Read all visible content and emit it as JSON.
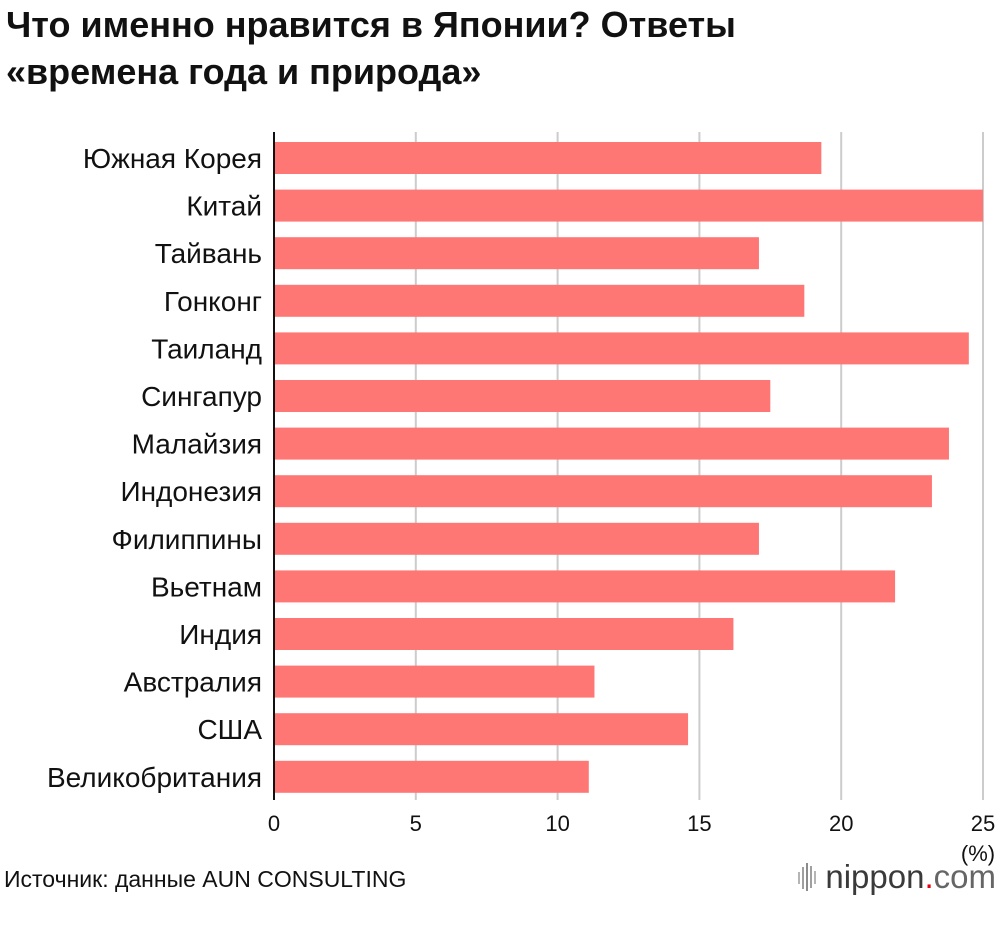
{
  "chart_data": {
    "type": "bar",
    "orientation": "horizontal",
    "title_lines": [
      "Что именно нравится в Японии? Ответы",
      "«времена года и природа»"
    ],
    "categories": [
      "Южная Корея",
      "Китай",
      "Тайвань",
      "Гонконг",
      "Таиланд",
      "Сингапур",
      "Малайзия",
      "Индонезия",
      "Филиппины",
      "Вьетнам",
      "Индия",
      "Австралия",
      "США",
      "Великобритания"
    ],
    "values": [
      19.3,
      25.0,
      17.1,
      18.7,
      24.5,
      17.5,
      23.8,
      23.2,
      17.1,
      21.9,
      16.2,
      11.3,
      14.6,
      11.1
    ],
    "xlim": [
      0,
      25
    ],
    "xticks": [
      0,
      5,
      10,
      15,
      20,
      25
    ],
    "unit": "(%)",
    "grid": true,
    "bar_color": "#ff7775",
    "grid_color": "#cccccc",
    "axis_color": "#111111"
  },
  "footer": {
    "source": "Источник: данные AUN CONSULTING",
    "logo": {
      "icon": "nippon-logo-icon",
      "name": "nippon",
      "dot": ".",
      "tld": "com",
      "dot_color": "#e60012"
    }
  }
}
